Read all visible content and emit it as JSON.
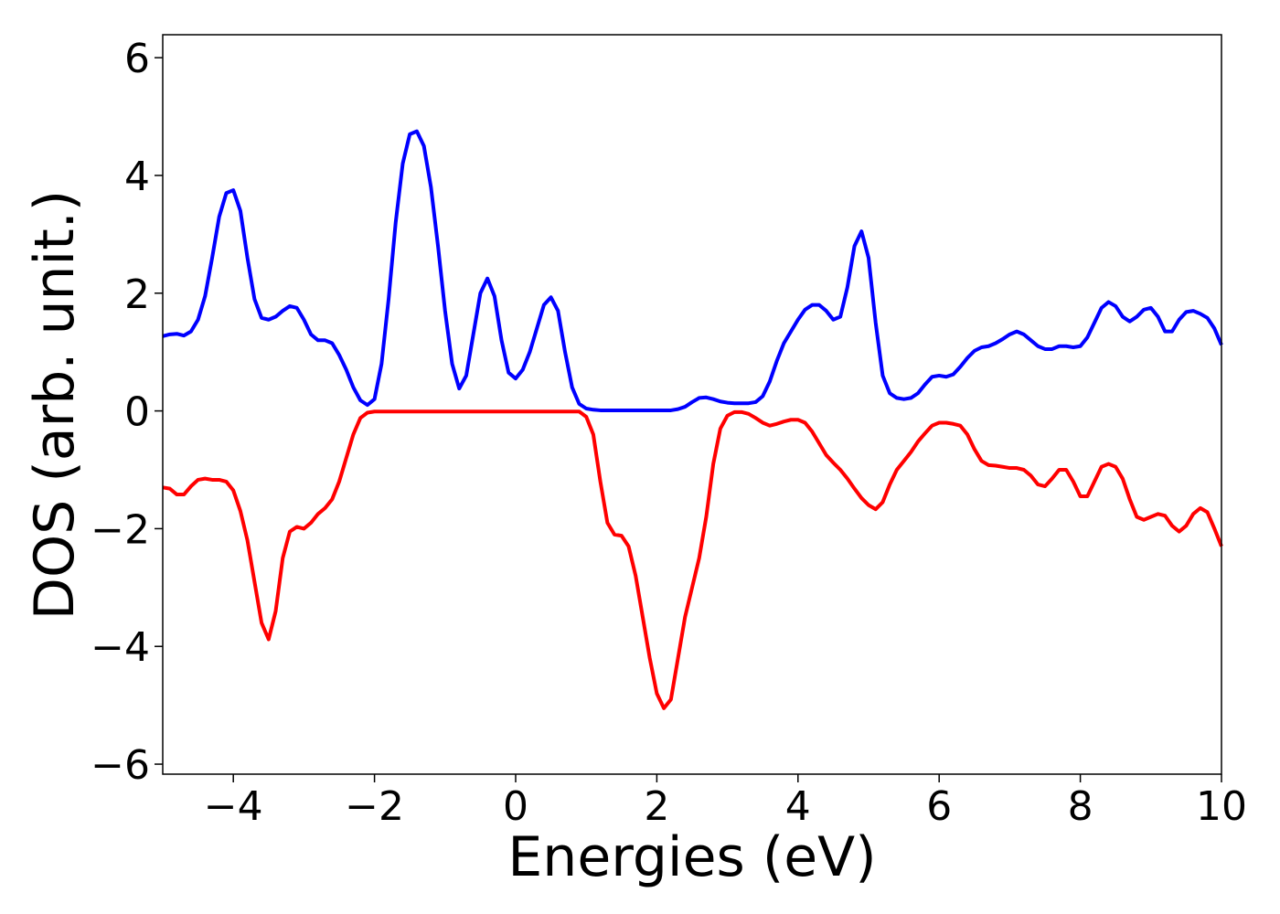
{
  "chart_data": {
    "type": "line",
    "xlabel": "Energies (eV)",
    "ylabel": "DOS (arb. unit.)",
    "x": [
      -5,
      -4.9,
      -4.8,
      -4.7,
      -4.6,
      -4.5,
      -4.4,
      -4.3,
      -4.2,
      -4.1,
      -4,
      -3.9,
      -3.8,
      -3.7,
      -3.6,
      -3.5,
      -3.4,
      -3.3,
      -3.2,
      -3.1,
      -3,
      -2.9,
      -2.8,
      -2.7,
      -2.6,
      -2.5,
      -2.4,
      -2.3,
      -2.2,
      -2.1,
      -2,
      -1.9,
      -1.8,
      -1.7,
      -1.6,
      -1.5,
      -1.4,
      -1.3,
      -1.2,
      -1.1,
      -1,
      -0.9,
      -0.8,
      -0.7,
      -0.6,
      -0.5,
      -0.4,
      -0.3,
      -0.2,
      -0.1,
      0,
      0.1,
      0.2,
      0.3,
      0.4,
      0.5,
      0.6,
      0.7,
      0.8,
      0.9,
      1,
      1.1,
      1.2,
      1.3,
      1.4,
      1.5,
      1.6,
      1.7,
      1.8,
      1.9,
      2,
      2.1,
      2.2,
      2.3,
      2.4,
      2.5,
      2.6,
      2.7,
      2.8,
      2.9,
      3,
      3.1,
      3.2,
      3.3,
      3.4,
      3.5,
      3.6,
      3.7,
      3.8,
      3.9,
      4,
      4.1,
      4.2,
      4.3,
      4.4,
      4.5,
      4.6,
      4.7,
      4.8,
      4.9,
      5,
      5.1,
      5.2,
      5.3,
      5.4,
      5.5,
      5.6,
      5.7,
      5.8,
      5.9,
      6,
      6.1,
      6.2,
      6.3,
      6.4,
      6.5,
      6.6,
      6.7,
      6.8,
      6.9,
      7,
      7.1,
      7.2,
      7.3,
      7.4,
      7.5,
      7.6,
      7.7,
      7.8,
      7.9,
      8,
      8.1,
      8.2,
      8.3,
      8.4,
      8.5,
      8.6,
      8.7,
      8.8,
      8.9,
      9,
      9.1,
      9.2,
      9.3,
      9.4,
      9.5,
      9.6,
      9.7,
      9.8,
      9.9,
      10
    ],
    "series": [
      {
        "color": "#0000ff",
        "values": [
          1.27,
          1.3,
          1.31,
          1.28,
          1.35,
          1.55,
          1.95,
          2.6,
          3.3,
          3.7,
          3.75,
          3.4,
          2.6,
          1.9,
          1.58,
          1.55,
          1.6,
          1.7,
          1.78,
          1.75,
          1.55,
          1.3,
          1.2,
          1.2,
          1.15,
          0.95,
          0.7,
          0.4,
          0.18,
          0.1,
          0.2,
          0.8,
          1.9,
          3.2,
          4.2,
          4.7,
          4.75,
          4.5,
          3.8,
          2.8,
          1.7,
          0.8,
          0.38,
          0.6,
          1.3,
          2.0,
          2.25,
          1.95,
          1.2,
          0.65,
          0.55,
          0.7,
          1.0,
          1.4,
          1.8,
          1.93,
          1.7,
          1.0,
          0.4,
          0.12,
          0.04,
          0.02,
          0.01,
          0.01,
          0.01,
          0.01,
          0.01,
          0.01,
          0.01,
          0.01,
          0.01,
          0.01,
          0.01,
          0.03,
          0.07,
          0.15,
          0.22,
          0.23,
          0.2,
          0.16,
          0.14,
          0.13,
          0.13,
          0.13,
          0.15,
          0.25,
          0.5,
          0.85,
          1.15,
          1.35,
          1.55,
          1.72,
          1.8,
          1.8,
          1.7,
          1.55,
          1.6,
          2.1,
          2.8,
          3.05,
          2.6,
          1.5,
          0.6,
          0.3,
          0.22,
          0.2,
          0.22,
          0.3,
          0.45,
          0.58,
          0.6,
          0.58,
          0.62,
          0.75,
          0.9,
          1.02,
          1.08,
          1.1,
          1.15,
          1.22,
          1.3,
          1.35,
          1.3,
          1.2,
          1.1,
          1.05,
          1.05,
          1.1,
          1.1,
          1.08,
          1.1,
          1.25,
          1.5,
          1.75,
          1.85,
          1.78,
          1.6,
          1.52,
          1.6,
          1.72,
          1.75,
          1.6,
          1.35,
          1.35,
          1.55,
          1.68,
          1.7,
          1.65,
          1.58,
          1.4,
          1.12
        ]
      },
      {
        "color": "#ff0000",
        "values": [
          -1.3,
          -1.32,
          -1.42,
          -1.42,
          -1.28,
          -1.17,
          -1.15,
          -1.17,
          -1.17,
          -1.2,
          -1.35,
          -1.7,
          -2.2,
          -2.9,
          -3.6,
          -3.88,
          -3.4,
          -2.5,
          -2.05,
          -1.97,
          -2.0,
          -1.9,
          -1.75,
          -1.65,
          -1.5,
          -1.2,
          -0.8,
          -0.4,
          -0.12,
          -0.03,
          -0.01,
          -0.01,
          -0.01,
          -0.01,
          -0.01,
          -0.01,
          -0.01,
          -0.01,
          -0.01,
          -0.01,
          -0.01,
          -0.01,
          -0.01,
          -0.01,
          -0.01,
          -0.01,
          -0.01,
          -0.01,
          -0.01,
          -0.01,
          -0.01,
          -0.01,
          -0.01,
          -0.01,
          -0.01,
          -0.01,
          -0.01,
          -0.01,
          -0.01,
          -0.01,
          -0.1,
          -0.4,
          -1.2,
          -1.9,
          -2.1,
          -2.12,
          -2.3,
          -2.8,
          -3.5,
          -4.2,
          -4.8,
          -5.05,
          -4.9,
          -4.2,
          -3.5,
          -3.0,
          -2.5,
          -1.8,
          -0.9,
          -0.3,
          -0.08,
          -0.02,
          -0.02,
          -0.05,
          -0.12,
          -0.2,
          -0.25,
          -0.22,
          -0.18,
          -0.15,
          -0.15,
          -0.2,
          -0.35,
          -0.55,
          -0.75,
          -0.88,
          -1.0,
          -1.15,
          -1.32,
          -1.48,
          -1.6,
          -1.67,
          -1.55,
          -1.25,
          -1.0,
          -0.85,
          -0.7,
          -0.52,
          -0.38,
          -0.25,
          -0.2,
          -0.2,
          -0.22,
          -0.25,
          -0.4,
          -0.65,
          -0.85,
          -0.92,
          -0.93,
          -0.95,
          -0.97,
          -0.97,
          -1.0,
          -1.1,
          -1.25,
          -1.28,
          -1.15,
          -1.0,
          -1.0,
          -1.2,
          -1.45,
          -1.45,
          -1.2,
          -0.95,
          -0.9,
          -0.95,
          -1.15,
          -1.5,
          -1.8,
          -1.85,
          -1.8,
          -1.75,
          -1.78,
          -1.95,
          -2.05,
          -1.95,
          -1.75,
          -1.65,
          -1.72,
          -2.0,
          -2.3
        ]
      }
    ],
    "xlim": [
      -5,
      10
    ],
    "xticks": [
      {
        "value": -4,
        "label": "−4"
      },
      {
        "value": -2,
        "label": "−2"
      },
      0,
      2,
      4,
      6,
      8,
      10
    ],
    "ylim": [
      -6.17,
      6.39
    ],
    "yticks": [
      {
        "value": -6,
        "label": "−6"
      },
      {
        "value": -4,
        "label": "−4"
      },
      {
        "value": -2,
        "label": "−2"
      },
      0,
      2,
      4,
      6
    ]
  }
}
